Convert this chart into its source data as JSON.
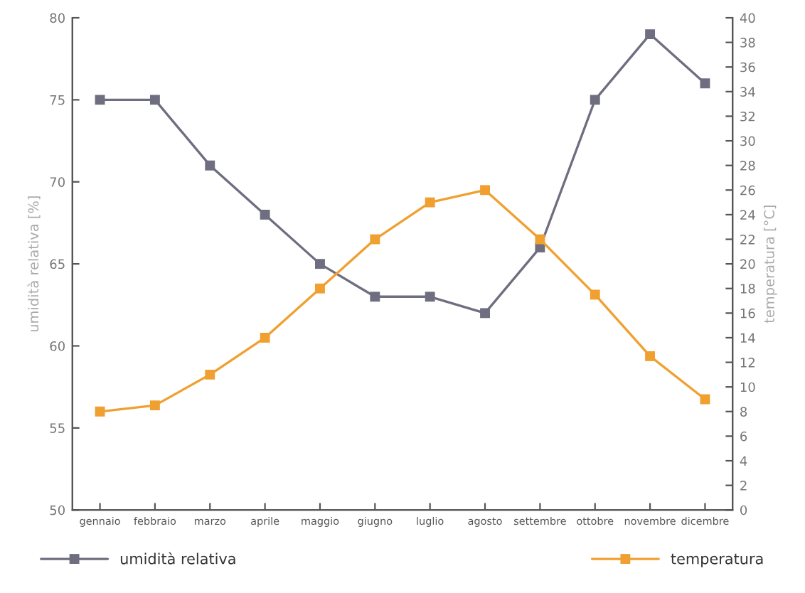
{
  "chart_data": {
    "type": "line",
    "categories": [
      "gennaio",
      "febbraio",
      "marzo",
      "aprile",
      "maggio",
      "giugno",
      "luglio",
      "agosto",
      "settembre",
      "ottobre",
      "novembre",
      "dicembre"
    ],
    "series": [
      {
        "name": "umidità relativa",
        "color": "#6e6e80",
        "values": [
          75,
          75,
          71,
          68,
          65,
          63,
          63,
          62,
          66,
          75,
          79,
          76
        ]
      },
      {
        "name": "temperatura",
        "color": "#f0a030",
        "axis": "y2",
        "values": [
          8,
          8.5,
          11,
          14,
          18,
          22,
          25,
          26,
          22,
          17.5,
          12.5,
          9
        ]
      }
    ],
    "ylabel": "umidità relativa [%]",
    "y2label": "temperatura [°C]",
    "ylim": [
      50,
      80
    ],
    "yticks": [
      50,
      55,
      60,
      65,
      70,
      75,
      80
    ],
    "y2lim": [
      0,
      40
    ],
    "y2ticks": [
      0,
      2,
      4,
      6,
      8,
      10,
      12,
      14,
      16,
      18,
      20,
      22,
      24,
      26,
      28,
      30,
      32,
      34,
      36,
      38,
      40
    ],
    "marker": "square",
    "line_style": "solid",
    "grid": false,
    "legend": "bottom"
  }
}
